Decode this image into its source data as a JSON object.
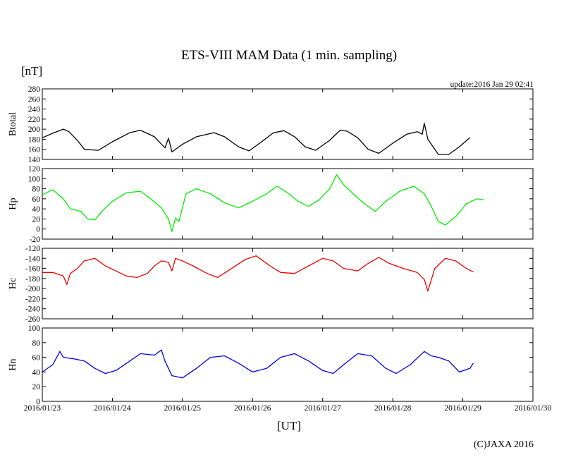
{
  "chart_data": {
    "type": "line",
    "title": "ETS-VIII MAM Data (1 min. sampling)",
    "unit": "[nT]",
    "update": "update:2016 Jan 29 02:41",
    "xlabel": "[UT]",
    "copyright": "(C)JAXA 2016",
    "x_ticks": [
      "2016/01/23",
      "2016/01/24",
      "2016/01/25",
      "2016/01/26",
      "2016/01/27",
      "2016/01/28",
      "2016/01/29",
      "2016/01/30"
    ],
    "x_unit": "day",
    "x_range": [
      0,
      7
    ],
    "grid": false,
    "panels": [
      {
        "name": "Btotal",
        "color": "#000000",
        "ylim": [
          140,
          280
        ],
        "yticks": [
          140,
          160,
          180,
          200,
          220,
          240,
          260,
          280
        ],
        "points": [
          [
            0,
            183
          ],
          [
            0.15,
            192
          ],
          [
            0.3,
            200
          ],
          [
            0.38,
            195
          ],
          [
            0.5,
            178
          ],
          [
            0.6,
            160
          ],
          [
            0.8,
            158
          ],
          [
            1.0,
            175
          ],
          [
            1.25,
            193
          ],
          [
            1.4,
            198
          ],
          [
            1.6,
            185
          ],
          [
            1.75,
            163
          ],
          [
            1.8,
            182
          ],
          [
            1.85,
            155
          ],
          [
            2.0,
            170
          ],
          [
            2.2,
            185
          ],
          [
            2.45,
            193
          ],
          [
            2.6,
            185
          ],
          [
            2.8,
            165
          ],
          [
            2.95,
            157
          ],
          [
            3.1,
            172
          ],
          [
            3.3,
            193
          ],
          [
            3.45,
            197
          ],
          [
            3.6,
            185
          ],
          [
            3.75,
            165
          ],
          [
            3.9,
            158
          ],
          [
            4.1,
            178
          ],
          [
            4.25,
            198
          ],
          [
            4.35,
            196
          ],
          [
            4.5,
            183
          ],
          [
            4.65,
            160
          ],
          [
            4.8,
            152
          ],
          [
            5.0,
            172
          ],
          [
            5.2,
            190
          ],
          [
            5.35,
            195
          ],
          [
            5.42,
            190
          ],
          [
            5.45,
            212
          ],
          [
            5.5,
            180
          ],
          [
            5.65,
            150
          ],
          [
            5.8,
            150
          ],
          [
            5.95,
            165
          ],
          [
            6.1,
            183
          ]
        ]
      },
      {
        "name": "Hp",
        "color": "#00ee00",
        "ylim": [
          -20,
          120
        ],
        "yticks": [
          -20,
          0,
          20,
          40,
          60,
          80,
          100,
          120
        ],
        "points": [
          [
            0,
            68
          ],
          [
            0.15,
            78
          ],
          [
            0.3,
            60
          ],
          [
            0.4,
            40
          ],
          [
            0.55,
            35
          ],
          [
            0.65,
            20
          ],
          [
            0.75,
            18
          ],
          [
            0.85,
            35
          ],
          [
            1.0,
            55
          ],
          [
            1.2,
            72
          ],
          [
            1.4,
            75
          ],
          [
            1.55,
            60
          ],
          [
            1.7,
            42
          ],
          [
            1.8,
            20
          ],
          [
            1.85,
            -5
          ],
          [
            1.9,
            22
          ],
          [
            1.95,
            15
          ],
          [
            2.05,
            70
          ],
          [
            2.2,
            80
          ],
          [
            2.4,
            70
          ],
          [
            2.6,
            52
          ],
          [
            2.8,
            42
          ],
          [
            3.0,
            55
          ],
          [
            3.2,
            70
          ],
          [
            3.35,
            85
          ],
          [
            3.5,
            72
          ],
          [
            3.65,
            55
          ],
          [
            3.8,
            45
          ],
          [
            3.95,
            58
          ],
          [
            4.1,
            80
          ],
          [
            4.2,
            108
          ],
          [
            4.3,
            88
          ],
          [
            4.45,
            68
          ],
          [
            4.6,
            50
          ],
          [
            4.75,
            35
          ],
          [
            4.9,
            55
          ],
          [
            5.1,
            75
          ],
          [
            5.3,
            85
          ],
          [
            5.45,
            70
          ],
          [
            5.55,
            45
          ],
          [
            5.65,
            15
          ],
          [
            5.75,
            8
          ],
          [
            5.9,
            25
          ],
          [
            6.05,
            50
          ],
          [
            6.2,
            60
          ],
          [
            6.3,
            58
          ]
        ]
      },
      {
        "name": "Hc",
        "color": "#ee0000",
        "ylim": [
          -260,
          -120
        ],
        "yticks": [
          -260,
          -240,
          -220,
          -200,
          -180,
          -160,
          -140,
          -120
        ],
        "points": [
          [
            0,
            -168
          ],
          [
            0.15,
            -168
          ],
          [
            0.3,
            -175
          ],
          [
            0.35,
            -192
          ],
          [
            0.4,
            -170
          ],
          [
            0.5,
            -160
          ],
          [
            0.6,
            -145
          ],
          [
            0.75,
            -140
          ],
          [
            0.9,
            -155
          ],
          [
            1.05,
            -165
          ],
          [
            1.2,
            -175
          ],
          [
            1.35,
            -178
          ],
          [
            1.5,
            -170
          ],
          [
            1.6,
            -155
          ],
          [
            1.7,
            -145
          ],
          [
            1.8,
            -148
          ],
          [
            1.85,
            -165
          ],
          [
            1.9,
            -140
          ],
          [
            2.0,
            -145
          ],
          [
            2.15,
            -155
          ],
          [
            2.35,
            -170
          ],
          [
            2.5,
            -178
          ],
          [
            2.7,
            -160
          ],
          [
            2.9,
            -142
          ],
          [
            3.05,
            -135
          ],
          [
            3.25,
            -155
          ],
          [
            3.4,
            -168
          ],
          [
            3.6,
            -170
          ],
          [
            3.8,
            -155
          ],
          [
            4.0,
            -140
          ],
          [
            4.15,
            -145
          ],
          [
            4.3,
            -160
          ],
          [
            4.5,
            -165
          ],
          [
            4.65,
            -150
          ],
          [
            4.8,
            -138
          ],
          [
            4.95,
            -150
          ],
          [
            5.15,
            -160
          ],
          [
            5.35,
            -168
          ],
          [
            5.45,
            -182
          ],
          [
            5.5,
            -205
          ],
          [
            5.6,
            -160
          ],
          [
            5.75,
            -140
          ],
          [
            5.9,
            -145
          ],
          [
            6.05,
            -160
          ],
          [
            6.15,
            -167
          ]
        ]
      },
      {
        "name": "Hn",
        "color": "#0000ee",
        "ylim": [
          0,
          100
        ],
        "yticks": [
          0,
          20,
          40,
          60,
          80,
          100
        ],
        "points": [
          [
            0,
            40
          ],
          [
            0.15,
            50
          ],
          [
            0.25,
            68
          ],
          [
            0.3,
            60
          ],
          [
            0.45,
            58
          ],
          [
            0.6,
            55
          ],
          [
            0.75,
            45
          ],
          [
            0.9,
            38
          ],
          [
            1.05,
            42
          ],
          [
            1.25,
            55
          ],
          [
            1.4,
            65
          ],
          [
            1.6,
            63
          ],
          [
            1.7,
            70
          ],
          [
            1.75,
            55
          ],
          [
            1.85,
            35
          ],
          [
            2.0,
            32
          ],
          [
            2.2,
            45
          ],
          [
            2.4,
            60
          ],
          [
            2.6,
            62
          ],
          [
            2.8,
            52
          ],
          [
            3.0,
            40
          ],
          [
            3.2,
            45
          ],
          [
            3.4,
            60
          ],
          [
            3.6,
            65
          ],
          [
            3.8,
            55
          ],
          [
            4.0,
            42
          ],
          [
            4.15,
            38
          ],
          [
            4.3,
            50
          ],
          [
            4.5,
            65
          ],
          [
            4.7,
            62
          ],
          [
            4.9,
            45
          ],
          [
            5.05,
            38
          ],
          [
            5.25,
            50
          ],
          [
            5.45,
            68
          ],
          [
            5.55,
            62
          ],
          [
            5.65,
            60
          ],
          [
            5.8,
            55
          ],
          [
            5.95,
            40
          ],
          [
            6.1,
            45
          ],
          [
            6.15,
            52
          ]
        ]
      }
    ]
  }
}
